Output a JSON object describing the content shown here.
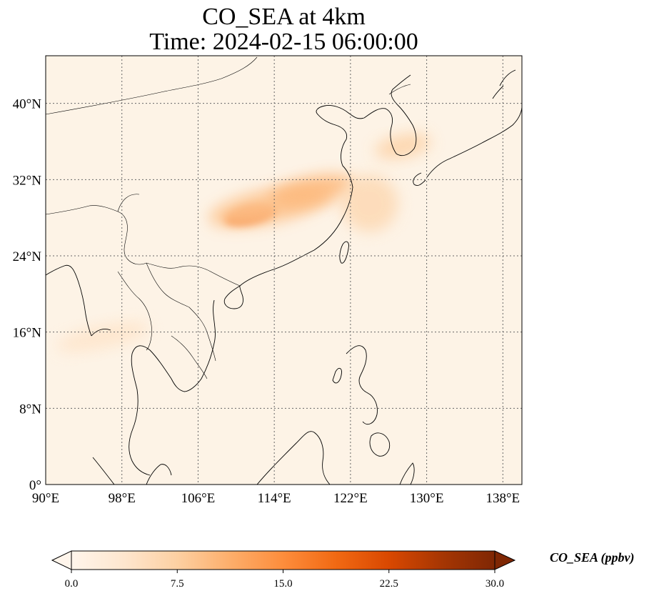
{
  "title_line1": "CO_SEA at 4km",
  "title_line2": "Time: 2024-02-15 06:00:00",
  "map": {
    "extent": {
      "lon": [
        90,
        140
      ],
      "lat": [
        0,
        45
      ]
    },
    "lon_ticks": [
      {
        "value": 90,
        "label": "90°E"
      },
      {
        "value": 98,
        "label": "98°E"
      },
      {
        "value": 106,
        "label": "106°E"
      },
      {
        "value": 114,
        "label": "114°E"
      },
      {
        "value": 122,
        "label": "122°E"
      },
      {
        "value": 130,
        "label": "130°E"
      },
      {
        "value": 138,
        "label": "138°E"
      }
    ],
    "lat_ticks": [
      {
        "value": 0,
        "label": "0°"
      },
      {
        "value": 8,
        "label": "8°N"
      },
      {
        "value": 16,
        "label": "16°N"
      },
      {
        "value": 24,
        "label": "24°N"
      },
      {
        "value": 32,
        "label": "32°N"
      },
      {
        "value": 40,
        "label": "40°N"
      }
    ],
    "gridlines": true,
    "background_color": "#fdf3e6",
    "coastline_color": "#000000"
  },
  "colorbar": {
    "label": "CO_SEA (ppbv)",
    "min": 0.0,
    "max": 30.0,
    "extend": "both",
    "ticks": [
      {
        "value": 0.0,
        "label": "0.0"
      },
      {
        "value": 7.5,
        "label": "7.5"
      },
      {
        "value": 15.0,
        "label": "15.0"
      },
      {
        "value": 22.5,
        "label": "22.5"
      },
      {
        "value": 30.0,
        "label": "30.0"
      }
    ],
    "colormap": [
      "#fff5eb",
      "#fee6ce",
      "#fdd0a2",
      "#fdae6b",
      "#fd8d3c",
      "#f16913",
      "#d94801",
      "#a63603",
      "#7f2704"
    ]
  },
  "plumes": [
    {
      "name": "central-china-core",
      "lon": 111.5,
      "lat": 28.3,
      "rlon": 2.8,
      "rlat": 1.0,
      "value": 18
    },
    {
      "name": "central-china-band",
      "lon": 113.5,
      "lat": 29.2,
      "rlon": 6.5,
      "rlat": 1.8,
      "value": 9
    },
    {
      "name": "yangtze-band",
      "lon": 118,
      "lat": 30.8,
      "rlon": 4.5,
      "rlat": 1.5,
      "value": 10
    },
    {
      "name": "korea-plume",
      "lon": 127.5,
      "lat": 35.5,
      "rlon": 3.0,
      "rlat": 1.2,
      "value": 7
    },
    {
      "name": "east-outflow",
      "lon": 124,
      "lat": 29.5,
      "rlon": 3.0,
      "rlat": 3.0,
      "value": 6
    },
    {
      "name": "se-asia-band",
      "lon": 96,
      "lat": 15.5,
      "rlon": 5.0,
      "rlat": 1.2,
      "value": 4
    }
  ]
}
